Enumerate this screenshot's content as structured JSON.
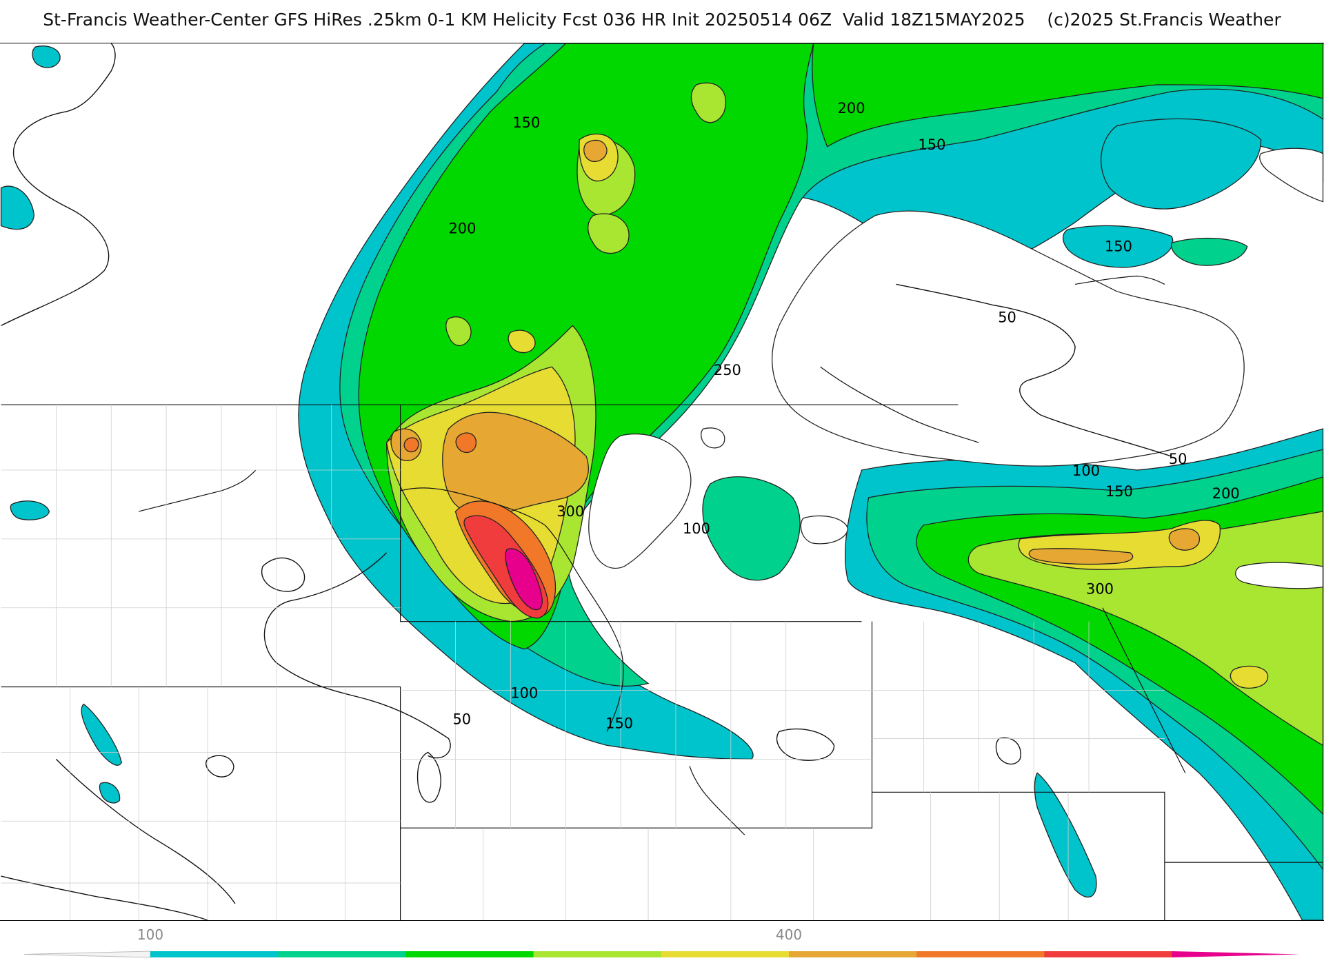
{
  "title": "St-Francis Weather-Center GFS HiRes .25km 0-1 KM Helicity Fcst 036 HR Init 20250514 06Z  Valid 18Z15MAY2025    (c)2025 St.Francis Weather",
  "contour_labels": [
    "150",
    "200",
    "200",
    "150",
    "150",
    "250",
    "50",
    "50",
    "100",
    "150",
    "200",
    "300",
    "300",
    "100",
    "100",
    "50",
    "150"
  ],
  "legend": {
    "tick_labels": [
      "100",
      "400"
    ],
    "colors": [
      "#00c4cc",
      "#00d18c",
      "#00d800",
      "#a8e632",
      "#e6dc32",
      "#e6a832",
      "#f07828",
      "#f03c3c",
      "#e6008c"
    ]
  },
  "palette": {
    "lvl50": "#00c4cc",
    "lvl100": "#00d18c",
    "lvl150": "#00d800",
    "lvl200": "#a8e632",
    "lvl250": "#e6dc32",
    "lvl300": "#e6a832",
    "lvl350": "#f07828",
    "lvl400": "#f03c3c",
    "lvl450": "#e6008c"
  }
}
